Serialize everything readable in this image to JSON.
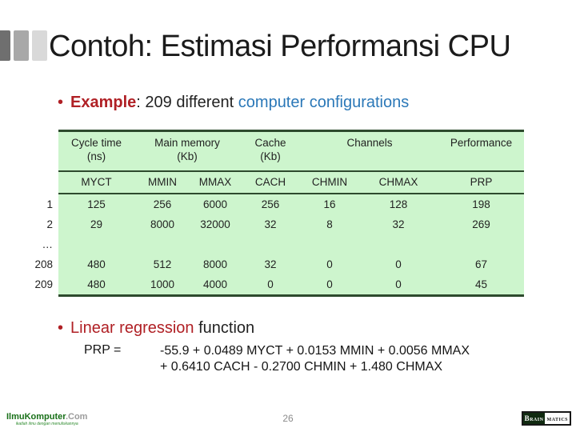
{
  "slide": {
    "title": "Contoh: Estimasi Performansi CPU"
  },
  "bullets": {
    "marker": "•",
    "example": {
      "label": "Example",
      "mid": ": 209 different ",
      "highlight": "computer configurations"
    },
    "regression": {
      "highlight": "Linear regression",
      "rest": " function"
    }
  },
  "formula": {
    "lhs": "PRP =",
    "line1": "-55.9 + 0.0489 MYCT + 0.0153 MMIN + 0.0056 MMAX",
    "line2": "+ 0.6410 CACH - 0.2700 CHMIN + 1.480 CHMAX"
  },
  "table": {
    "group_headers": [
      {
        "label": "Cycle time",
        "sub": "(ns)"
      },
      {
        "label": "Main memory",
        "sub": "(Kb)"
      },
      {
        "label": "Cache",
        "sub": "(Kb)"
      },
      {
        "label": "Channels",
        "sub": ""
      },
      {
        "label": "Performance",
        "sub": ""
      }
    ],
    "col_headers": [
      "MYCT",
      "MMIN",
      "MMAX",
      "CACH",
      "CHMIN",
      "CHMAX",
      "PRP"
    ],
    "rows": [
      {
        "id": "1",
        "values": [
          "125",
          "256",
          "6000",
          "256",
          "16",
          "128",
          "198"
        ]
      },
      {
        "id": "2",
        "values": [
          "29",
          "8000",
          "32000",
          "32",
          "8",
          "32",
          "269"
        ]
      },
      {
        "id": "…",
        "values": [
          "",
          "",
          "",
          "",
          "",
          "",
          ""
        ]
      },
      {
        "id": "208",
        "values": [
          "480",
          "512",
          "8000",
          "32",
          "0",
          "0",
          "67"
        ]
      },
      {
        "id": "209",
        "values": [
          "480",
          "1000",
          "4000",
          "0",
          "0",
          "0",
          "45"
        ]
      }
    ]
  },
  "chart_data": {
    "type": "table",
    "title": "209 different computer configurations",
    "columns": [
      "row",
      "MYCT",
      "MMIN",
      "MMAX",
      "CACH",
      "CHMIN",
      "CHMAX",
      "PRP"
    ],
    "column_groups": [
      "",
      "Cycle time (ns)",
      "Main memory (Kb)",
      "Main memory (Kb)",
      "Cache (Kb)",
      "Channels",
      "Channels",
      "Performance"
    ],
    "rows": [
      [
        1,
        125,
        256,
        6000,
        256,
        16,
        128,
        198
      ],
      [
        2,
        29,
        8000,
        32000,
        32,
        8,
        32,
        269
      ],
      [
        "…",
        null,
        null,
        null,
        null,
        null,
        null,
        null
      ],
      [
        208,
        480,
        512,
        8000,
        32,
        0,
        0,
        67
      ],
      [
        209,
        480,
        1000,
        4000,
        0,
        0,
        0,
        45
      ]
    ]
  },
  "footer": {
    "page_number": "26",
    "ilmukomputer": {
      "main": "IlmuKomputer",
      "suffix": ".Com",
      "tagline": "ikatlah ilmu dengan menuliskannya"
    },
    "brainmatics": {
      "part1": "Brain",
      "part2": "matics"
    }
  },
  "colors": {
    "accent_red": "#b02025",
    "accent_blue": "#2b78b8",
    "table_green": "#cdf5cd",
    "table_line": "#2d4a2d",
    "logo_green": "#187018"
  }
}
